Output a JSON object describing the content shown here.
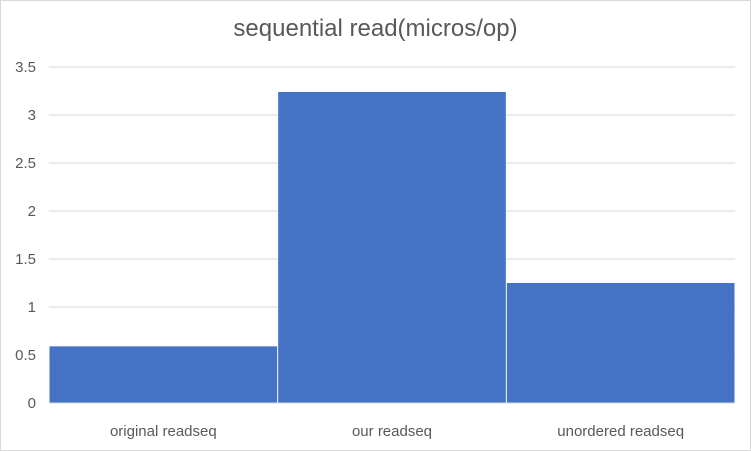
{
  "chart_data": {
    "type": "bar",
    "title": "sequential read(micros/op)",
    "xlabel": "",
    "ylabel": "",
    "categories": [
      "original readseq",
      "our readseq",
      "unordered readseq"
    ],
    "values": [
      0.59,
      3.24,
      1.25
    ],
    "ylim": [
      0,
      3.5
    ],
    "yticks": [
      "0",
      "0.5",
      "1",
      "1.5",
      "2",
      "2.5",
      "3",
      "3.5"
    ],
    "grid": true,
    "legend": "none",
    "bar_color": "#4472c4",
    "grid_color": "#d9d9d9",
    "axis_color": "#d9d9d9",
    "text_color": "#595959"
  }
}
